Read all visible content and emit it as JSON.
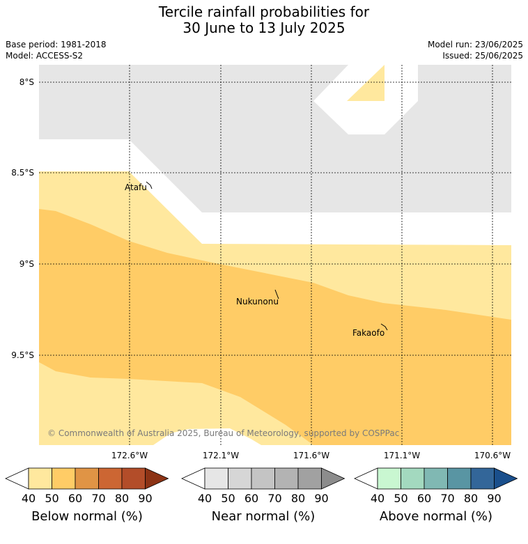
{
  "header": {
    "title_line1": "Tercile rainfall probabilities for",
    "title_line2": "30 June to 13 July 2025",
    "base_period": "Base period: 1981-2018",
    "model": "Model: ACCESS-S2",
    "model_run": "Model run: 23/06/2025",
    "issued": "Issued: 25/06/2025"
  },
  "map": {
    "lat_labels": [
      "8°S",
      "8.5°S",
      "9°S",
      "9.5°S"
    ],
    "lon_labels": [
      "172.6°W",
      "172.1°W",
      "171.6°W",
      "171.1°W",
      "170.6°W"
    ],
    "places": [
      "Atafu",
      "Nukunonu",
      "Fakaofo"
    ],
    "copyright": "© Commonwealth of Australia 2025, Bureau of Meteorology, supported by COSPPac",
    "colors": {
      "below_40": "#ffe89e",
      "below_50": "#ffcc66",
      "near_40": "#e6e6e6",
      "none": "#ffffff"
    }
  },
  "colorbars": [
    {
      "label": "Below normal (%)",
      "ticks": [
        "40",
        "50",
        "60",
        "70",
        "80",
        "90"
      ],
      "colors": [
        "#ffe89e",
        "#ffcc66",
        "#e09445",
        "#cc6633",
        "#b34d29",
        "#8c3315"
      ]
    },
    {
      "label": "Near normal (%)",
      "ticks": [
        "40",
        "50",
        "60",
        "70",
        "80",
        "90"
      ],
      "colors": [
        "#e6e6e6",
        "#d6d6d6",
        "#c4c4c4",
        "#b3b3b3",
        "#a1a1a1",
        "#8c8c8c"
      ]
    },
    {
      "label": "Above normal (%)",
      "ticks": [
        "40",
        "50",
        "60",
        "70",
        "80",
        "90"
      ],
      "colors": [
        "#c9f7d1",
        "#a3d9bf",
        "#80b8b3",
        "#5995a3",
        "#336699",
        "#1a4f8c"
      ]
    }
  ]
}
